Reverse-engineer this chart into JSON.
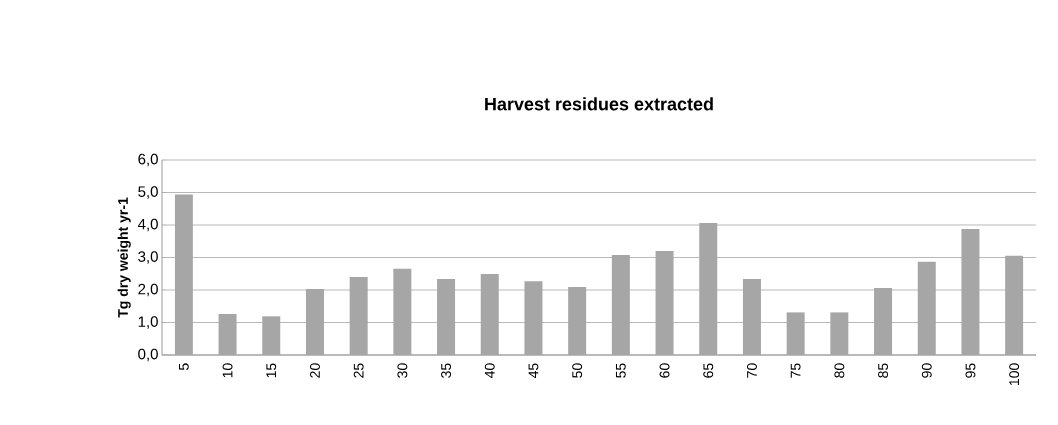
{
  "chart_data": {
    "type": "bar",
    "title": "Harvest residues extracted",
    "ylabel": "Tg dry weight yr-1",
    "categories": [
      "5",
      "10",
      "15",
      "20",
      "25",
      "30",
      "35",
      "40",
      "45",
      "50",
      "55",
      "60",
      "65",
      "70",
      "75",
      "80",
      "85",
      "90",
      "95",
      "100"
    ],
    "values": [
      4.94,
      1.26,
      1.19,
      2.03,
      2.4,
      2.65,
      2.34,
      2.49,
      2.27,
      2.09,
      3.08,
      3.2,
      4.06,
      2.34,
      1.31,
      1.31,
      2.06,
      2.87,
      3.88,
      3.05
    ],
    "color": "#a6a6a6",
    "ylim": [
      0,
      6
    ],
    "yticks": [
      {
        "value": 0,
        "label": "0,0"
      },
      {
        "value": 1,
        "label": "1,0"
      },
      {
        "value": 2,
        "label": "2,0"
      },
      {
        "value": 3,
        "label": "3,0"
      },
      {
        "value": 4,
        "label": "4,0"
      },
      {
        "value": 5,
        "label": "5,0"
      },
      {
        "value": 6,
        "label": "6,0"
      }
    ],
    "grid": "y"
  }
}
